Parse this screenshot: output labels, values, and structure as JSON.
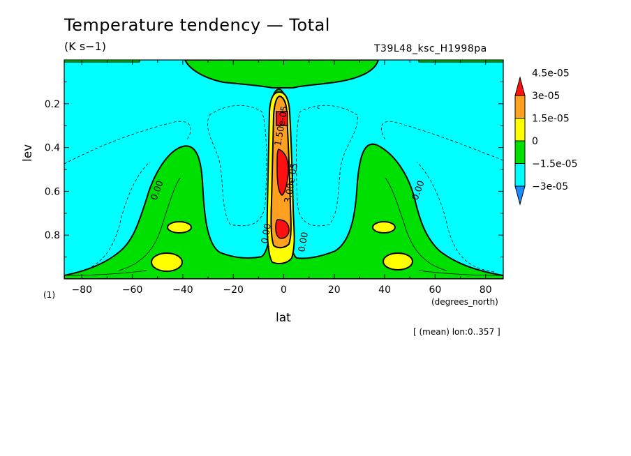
{
  "title": "Temperature tendency — Total",
  "units": "(K s−1)",
  "run_name": "T39L48_ksc_H1998pa",
  "mean_note": "[ (mean) lon:0..357 ]",
  "chart_data": {
    "type": "contour",
    "xlabel": "lat",
    "ylabel": "lev",
    "x_unit": "(degrees_north)",
    "y_unit": "(1)",
    "xlim": [
      -87,
      87
    ],
    "ylim": [
      1.0,
      0.0
    ],
    "x_ticks": [
      -80,
      -60,
      -40,
      -20,
      0,
      20,
      40,
      60,
      80
    ],
    "x_tick_labels": [
      "−80",
      "−60",
      "−40",
      "−20",
      "0",
      "20",
      "40",
      "60",
      "80"
    ],
    "y_ticks": [
      0.2,
      0.4,
      0.6,
      0.8
    ],
    "y_tick_labels": [
      "0.2",
      "0.4",
      "0.6",
      "0.8"
    ],
    "colorbar": {
      "levels": [
        -3e-05,
        -1.5e-05,
        0,
        1.5e-05,
        3e-05,
        4.5e-05
      ],
      "labels": [
        "−3e-05",
        "−1.5e-05",
        "0",
        "1.5e-05",
        "3e-05",
        "4.5e-05"
      ],
      "colors": [
        "#1a8cff",
        "#00ffff",
        "#00e000",
        "#ffff00",
        "#ffa020",
        "#ff1010"
      ]
    },
    "contour_labels": [
      "0.00",
      "0.00",
      "0.00",
      "0.00",
      "1.50e-05",
      "3.00e-05"
    ]
  }
}
